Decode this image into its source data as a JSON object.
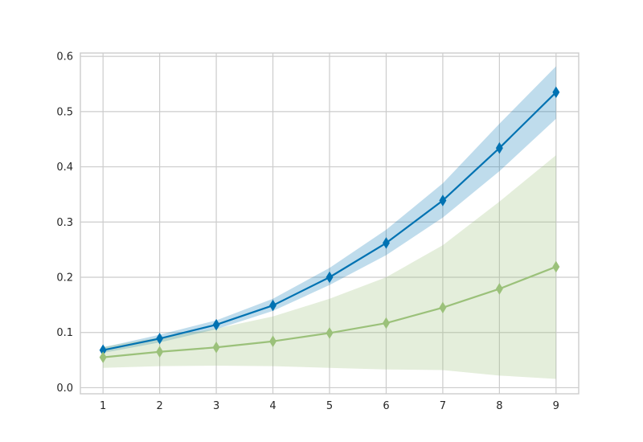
{
  "chart_data": {
    "type": "line",
    "title": "",
    "xlabel": "",
    "ylabel": "",
    "x": [
      1,
      2,
      3,
      4,
      5,
      6,
      7,
      8,
      9
    ],
    "xlim": [
      0.6,
      9.4
    ],
    "ylim": [
      -0.011,
      0.606
    ],
    "x_ticks": [
      "1",
      "2",
      "3",
      "4",
      "5",
      "6",
      "7",
      "8",
      "9"
    ],
    "y_ticks": [
      "0.0",
      "0.1",
      "0.2",
      "0.3",
      "0.4",
      "0.5",
      "0.6"
    ],
    "grid": true,
    "legend": "none",
    "series": [
      {
        "color": "#0072b2",
        "marker": "thin-diamond",
        "values": [
          0.068,
          0.089,
          0.114,
          0.149,
          0.2,
          0.262,
          0.339,
          0.434,
          0.535
        ],
        "band_lower": [
          0.063,
          0.082,
          0.106,
          0.139,
          0.186,
          0.24,
          0.308,
          0.392,
          0.487
        ],
        "band_upper": [
          0.073,
          0.096,
          0.122,
          0.161,
          0.217,
          0.286,
          0.37,
          0.478,
          0.582
        ]
      },
      {
        "color": "#9bc17a",
        "marker": "thin-diamond",
        "values": [
          0.055,
          0.065,
          0.073,
          0.084,
          0.099,
          0.117,
          0.145,
          0.179,
          0.219
        ],
        "band_lower": [
          0.036,
          0.039,
          0.04,
          0.039,
          0.036,
          0.033,
          0.032,
          0.022,
          0.016
        ],
        "band_upper": [
          0.074,
          0.091,
          0.107,
          0.129,
          0.161,
          0.2,
          0.258,
          0.337,
          0.421
        ]
      }
    ]
  }
}
